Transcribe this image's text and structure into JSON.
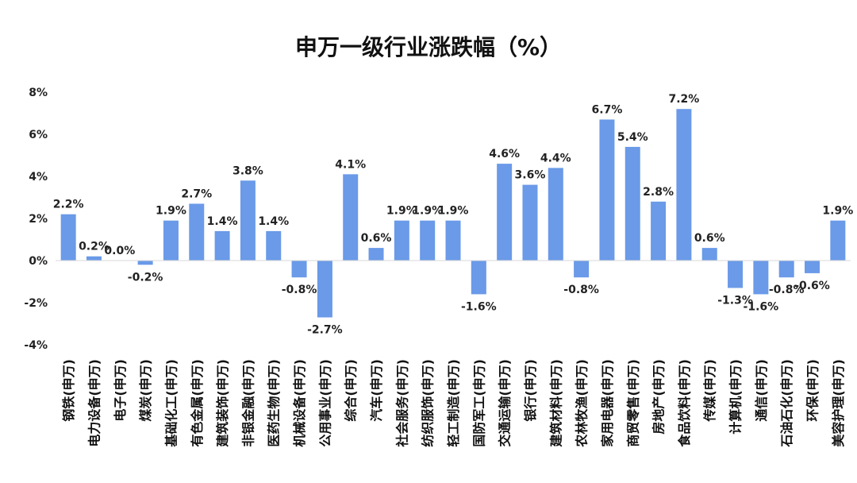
{
  "chart_data": {
    "type": "bar",
    "title": "申万一级行业涨跌幅（%）",
    "xlabel": "",
    "ylabel": "",
    "ylim": [
      -4,
      8
    ],
    "yticks": [
      "-4%",
      "-2%",
      "0%",
      "2%",
      "4%",
      "6%",
      "8%"
    ],
    "grid": false,
    "bar_color": "#6a9ae8",
    "categories": [
      "钢铁(申万)",
      "电力设备(申万)",
      "电子(申万)",
      "煤炭(申万)",
      "基础化工(申万)",
      "有色金属(申万)",
      "建筑装饰(申万)",
      "非银金融(申万)",
      "医药生物(申万)",
      "机械设备(申万)",
      "公用事业(申万)",
      "综合(申万)",
      "汽车(申万)",
      "社会服务(申万)",
      "纺织服饰(申万)",
      "轻工制造(申万)",
      "国防军工(申万)",
      "交通运输(申万)",
      "银行(申万)",
      "建筑材料(申万)",
      "农林牧渔(申万)",
      "家用电器(申万)",
      "商贸零售(申万)",
      "房地产(申万)",
      "食品饮料(申万)",
      "传媒(申万)",
      "计算机(申万)",
      "通信(申万)",
      "石油石化(申万)",
      "环保(申万)",
      "美容护理(申万)"
    ],
    "values": [
      2.2,
      0.2,
      0.0,
      -0.2,
      1.9,
      2.7,
      1.4,
      3.8,
      1.4,
      -0.8,
      -2.7,
      4.1,
      0.6,
      1.9,
      1.9,
      1.9,
      -1.6,
      4.6,
      3.6,
      4.4,
      -0.8,
      6.7,
      5.4,
      2.8,
      7.2,
      0.6,
      -1.3,
      -1.6,
      -0.8,
      -0.6,
      1.9
    ],
    "labels": [
      "2.2%",
      "0.2%",
      "0.0%",
      "-0.2%",
      "1.9%",
      "2.7%",
      "1.4%",
      "3.8%",
      "1.4%",
      "-0.8%",
      "-2.7%",
      "4.1%",
      "0.6%",
      "1.9%",
      "1.9%",
      "1.9%",
      "-1.6%",
      "4.6%",
      "3.6%",
      "4.4%",
      "-0.8%",
      "6.7%",
      "5.4%",
      "2.8%",
      "7.2%",
      "0.6%",
      "-1.3%",
      "-1.6%",
      "-0.8%",
      "-0.6%",
      "1.9%"
    ]
  }
}
